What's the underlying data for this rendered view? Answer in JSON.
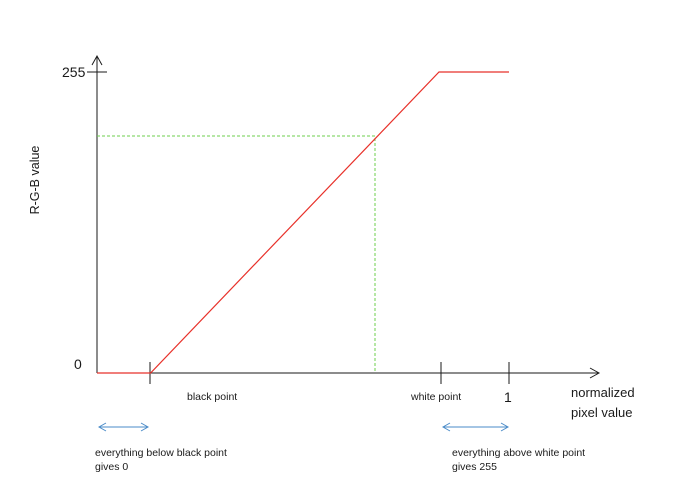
{
  "chart_data": {
    "type": "line",
    "ylabel": "R-G-B value",
    "xlabel": "normalized pixel value",
    "y_ticks": [
      "0",
      "255"
    ],
    "x_tick": "1",
    "x_markers": [
      "black point",
      "white point"
    ],
    "series": [
      {
        "x": [
          0,
          0.13,
          0.83,
          1
        ],
        "y": [
          0,
          0,
          255,
          255
        ]
      }
    ],
    "ylim": [
      0,
      255
    ],
    "colors": {
      "curve": "#e8312a",
      "guide": "#6ccf4e",
      "arrows": "#4a8bc8",
      "axes": "#1a1a1a"
    },
    "annotations": {
      "left_note_line1": "everything below black point",
      "left_note_line2": "gives 0",
      "right_note_line1": "everything above white point",
      "right_note_line2": "gives 255"
    }
  }
}
